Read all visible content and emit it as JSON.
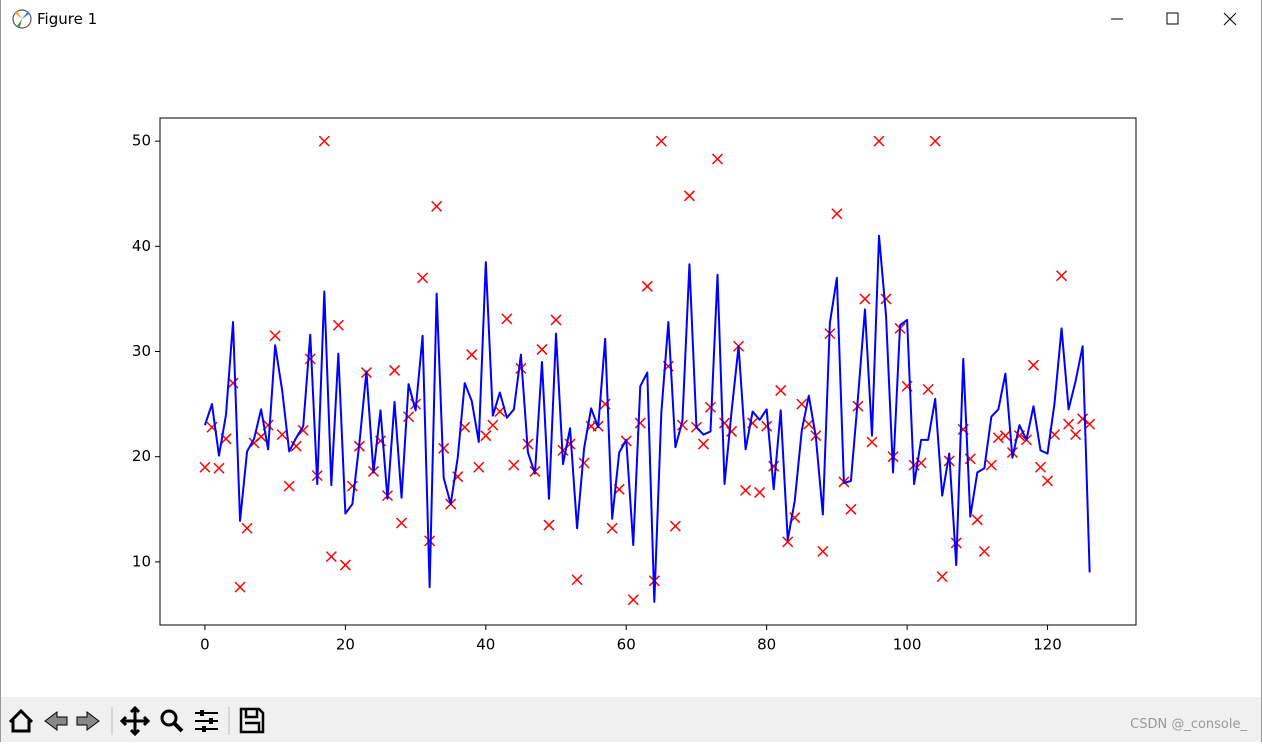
{
  "window": {
    "title": "Figure 1"
  },
  "chart_data": {
    "type": "line",
    "x": [
      0,
      1,
      2,
      3,
      4,
      5,
      6,
      7,
      8,
      9,
      10,
      11,
      12,
      13,
      14,
      15,
      16,
      17,
      18,
      19,
      20,
      21,
      22,
      23,
      24,
      25,
      26,
      27,
      28,
      29,
      30,
      31,
      32,
      33,
      34,
      35,
      36,
      37,
      38,
      39,
      40,
      41,
      42,
      43,
      44,
      45,
      46,
      47,
      48,
      49,
      50,
      51,
      52,
      53,
      54,
      55,
      56,
      57,
      58,
      59,
      60,
      61,
      62,
      63,
      64,
      65,
      66,
      67,
      68,
      69,
      70,
      71,
      72,
      73,
      74,
      75,
      76,
      77,
      78,
      79,
      80,
      81,
      82,
      83,
      84,
      85,
      86,
      87,
      88,
      89,
      90,
      91,
      92,
      93,
      94,
      95,
      96,
      97,
      98,
      99,
      100,
      101,
      102,
      103,
      104,
      105,
      106,
      107,
      108,
      109,
      110,
      111,
      112,
      113,
      114,
      115,
      116,
      117,
      118,
      119,
      120,
      121,
      122,
      123,
      124,
      125,
      126
    ],
    "series": [
      {
        "style": "marker",
        "color": "#ff0000",
        "values": [
          19,
          22.8,
          18.9,
          21.7,
          27,
          7.6,
          13.2,
          21.3,
          21.9,
          23,
          31.5,
          22.1,
          17.2,
          21,
          22.5,
          29.3,
          18.2,
          50,
          10.5,
          32.5,
          9.7,
          17.2,
          21,
          28,
          18.6,
          21.5,
          16.3,
          28.2,
          13.7,
          23.8,
          25,
          37,
          12,
          43.8,
          20.8,
          15.5,
          18.1,
          22.8,
          29.7,
          19,
          22,
          23,
          24.3,
          33.1,
          19.2,
          28.4,
          21.2,
          18.6,
          30.2,
          13.5,
          33,
          20.6,
          21.2,
          8.3,
          19.4,
          22.9,
          22.9,
          25,
          13.2,
          16.9,
          21.5,
          6.4,
          23.2,
          36.2,
          8.2,
          50,
          28.6,
          13.4,
          23,
          44.8,
          22.8,
          21.2,
          24.7,
          48.3,
          23.2,
          22.4,
          30.5,
          16.8,
          23.2,
          16.6,
          22.9,
          19.1,
          26.3,
          11.9,
          14.2,
          25,
          23.1,
          22,
          11,
          31.7,
          43.1,
          17.6,
          15,
          24.8,
          35,
          21.4,
          50,
          35,
          20,
          32.2,
          26.7,
          19.2,
          19.4,
          26.4,
          50,
          8.6,
          19.6,
          11.8,
          22.6,
          19.8,
          14,
          11,
          19.2,
          21.8,
          22,
          20.4,
          22,
          21.6,
          28.7,
          19,
          17.7,
          22.1,
          37.2,
          23.1,
          22.1,
          23.6,
          23.1
        ]
      },
      {
        "style": "line",
        "color": "#0000ff",
        "values": [
          23,
          25,
          20.1,
          24,
          32.8,
          13.9,
          20.5,
          21.7,
          24.5,
          20.7,
          30.6,
          26.3,
          20.5,
          21.8,
          22.9,
          31.6,
          17.4,
          35.7,
          17.3,
          29.8,
          14.6,
          15.5,
          21.3,
          28.1,
          18.5,
          24.4,
          16,
          25.2,
          16.1,
          26.9,
          24.4,
          31.5,
          7.6,
          35.5,
          18,
          15.5,
          19.9,
          27,
          25.3,
          21.4,
          38.5,
          23.9,
          26.1,
          23.7,
          24.5,
          29.7,
          20.4,
          18.4,
          29,
          16,
          31.7,
          19.3,
          22.7,
          13.2,
          20.8,
          24.6,
          22.8,
          31.2,
          14.1,
          20.4,
          21.6,
          11.6,
          26.7,
          28,
          6.2,
          24.2,
          32.8,
          20.9,
          23.4,
          38.3,
          22.8,
          22.1,
          22.4,
          37.3,
          17.4,
          24.3,
          30.5,
          20.7,
          24.3,
          23.5,
          24.5,
          16.9,
          24.4,
          12.1,
          15.8,
          22.5,
          25.8,
          21.9,
          14.5,
          32.7,
          37,
          17.5,
          17.7,
          25.6,
          34,
          22,
          41,
          33.4,
          18.5,
          32.5,
          33,
          17.4,
          21.6,
          21.6,
          25.5,
          16.3,
          20.3,
          9.7,
          29.3,
          14.3,
          18.5,
          18.9,
          23.8,
          24.5,
          27.9,
          19.9,
          23,
          21.6,
          24.8,
          20.6,
          20.3,
          25.1,
          32.2,
          24.5,
          27.2,
          30.5,
          9
        ]
      }
    ],
    "xlim": [
      -6.4,
      132.6
    ],
    "ylim": [
      4.0,
      52.2
    ],
    "xticks": [
      0,
      20,
      40,
      60,
      80,
      100,
      120
    ],
    "yticks": [
      10,
      20,
      30,
      40,
      50
    ]
  },
  "watermark": "CSDN @_console_"
}
